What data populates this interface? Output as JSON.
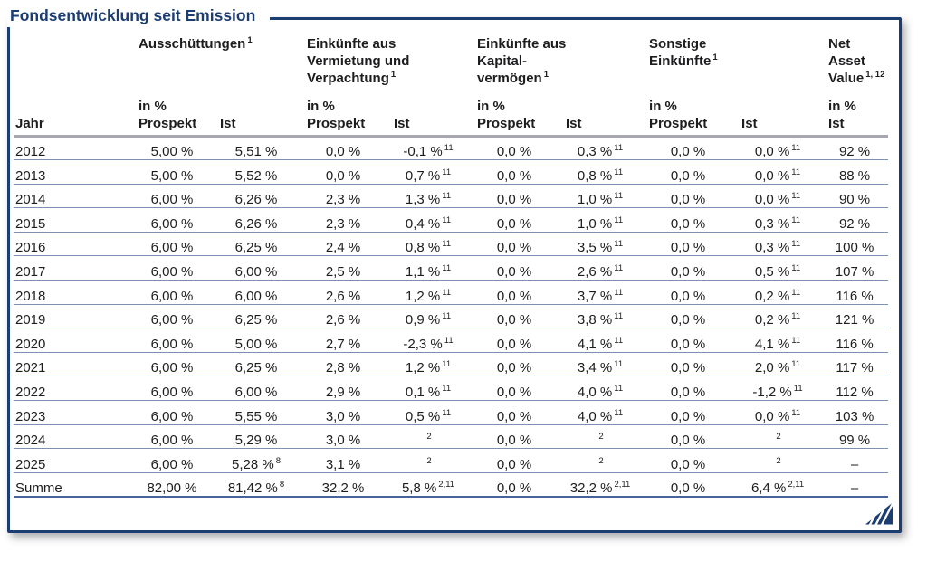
{
  "header": {
    "title": "Fondsentwicklung seit Emission"
  },
  "colors": {
    "navy": "#1b3d72",
    "text": "#1d1d1f",
    "row-line": "#7d90b2",
    "head-line": "#a7a7b0",
    "summe-line": "#46639c"
  },
  "icons": {
    "corner_logo": "diagonal-hatch-triangle"
  },
  "table": {
    "labels": {
      "jahr": "Jahr",
      "prospekt": "Prospekt",
      "ist": "Ist",
      "in_percent": "in %"
    },
    "groups": [
      {
        "title": "Ausschüttungen",
        "sup": "1"
      },
      {
        "title": "Einkünfte aus\nVermietung und\nVerpachtung",
        "sup": "1"
      },
      {
        "title": "Einkünfte aus\nKapital-\nvermögen",
        "sup": "1"
      },
      {
        "title": "Sonstige\nEinkünfte",
        "sup": "1"
      },
      {
        "title": "Net\nAsset\nValue",
        "sup": "1, 12"
      }
    ],
    "rows": [
      {
        "jahr": "2012",
        "cells": [
          "5,00 %",
          "5,51 %",
          "0,0 %",
          "-0,1 %^11",
          "0,0 %",
          "0,3 %^11",
          "0,0 %",
          "0,0 %^11",
          "92 %"
        ]
      },
      {
        "jahr": "2013",
        "cells": [
          "5,00 %",
          "5,52 %",
          "0,0 %",
          "0,7 %^11",
          "0,0 %",
          "0,8 %^11",
          "0,0 %",
          "0,0 %^11",
          "88 %"
        ]
      },
      {
        "jahr": "2014",
        "cells": [
          "6,00 %",
          "6,26 %",
          "2,3 %",
          "1,3 %^11",
          "0,0 %",
          "1,0 %^11",
          "0,0 %",
          "0,0 %^11",
          "90 %"
        ]
      },
      {
        "jahr": "2015",
        "cells": [
          "6,00 %",
          "6,26 %",
          "2,3 %",
          "0,4 %^11",
          "0,0 %",
          "1,0 %^11",
          "0,0 %",
          "0,3 %^11",
          "92 %"
        ]
      },
      {
        "jahr": "2016",
        "cells": [
          "6,00 %",
          "6,25 %",
          "2,4 %",
          "0,8 %^11",
          "0,0 %",
          "3,5 %^11",
          "0,0 %",
          "0,3 %^11",
          "100 %"
        ]
      },
      {
        "jahr": "2017",
        "cells": [
          "6,00 %",
          "6,00 %",
          "2,5 %",
          "1,1 %^11",
          "0,0 %",
          "2,6 %^11",
          "0,0 %",
          "0,5 %^11",
          "107 %"
        ]
      },
      {
        "jahr": "2018",
        "cells": [
          "6,00 %",
          "6,00 %",
          "2,6 %",
          "1,2 %^11",
          "0,0 %",
          "3,7 %^11",
          "0,0 %",
          "0,2 %^11",
          "116 %"
        ]
      },
      {
        "jahr": "2019",
        "cells": [
          "6,00 %",
          "6,25 %",
          "2,6 %",
          "0,9 %^11",
          "0,0 %",
          "3,8 %^11",
          "0,0 %",
          "0,2 %^11",
          "121 %"
        ]
      },
      {
        "jahr": "2020",
        "cells": [
          "6,00 %",
          "5,00 %",
          "2,7 %",
          "-2,3 %^11",
          "0,0 %",
          "4,1 %^11",
          "0,0 %",
          "4,1 %^11",
          "116 %"
        ]
      },
      {
        "jahr": "2021",
        "cells": [
          "6,00 %",
          "6,25 %",
          "2,8 %",
          "1,2 %^11",
          "0,0 %",
          "3,4 %^11",
          "0,0 %",
          "2,0 %^11",
          "117 %"
        ]
      },
      {
        "jahr": "2022",
        "cells": [
          "6,00 %",
          "6,00 %",
          "2,9 %",
          "0,1 %^11",
          "0,0 %",
          "4,0 %^11",
          "0,0 %",
          "-1,2 %^11",
          "112 %"
        ]
      },
      {
        "jahr": "2023",
        "cells": [
          "6,00 %",
          "5,55 %",
          "3,0 %",
          "0,5 %^11",
          "0,0 %",
          "4,0 %^11",
          "0,0 %",
          "0,0 %^11",
          "103 %"
        ]
      },
      {
        "jahr": "2024",
        "cells": [
          "6,00 %",
          "5,29 %",
          "3,0 %",
          "^2",
          "0,0 %",
          "^2",
          "0,0 %",
          "^2",
          "99 %"
        ]
      },
      {
        "jahr": "2025",
        "cells": [
          "6,00 %",
          "5,28 %^8",
          "3,1 %",
          "^2",
          "0,0 %",
          "^2",
          "0,0 %",
          "^2",
          "–"
        ]
      },
      {
        "jahr": "Summe",
        "cells": [
          "82,00 %",
          "81,42 %^8",
          "32,2 %",
          "5,8 %^2,11",
          "0,0 %",
          "32,2 %^2,11",
          "0,0 %",
          "6,4 %^2,11",
          "–"
        ]
      }
    ]
  }
}
